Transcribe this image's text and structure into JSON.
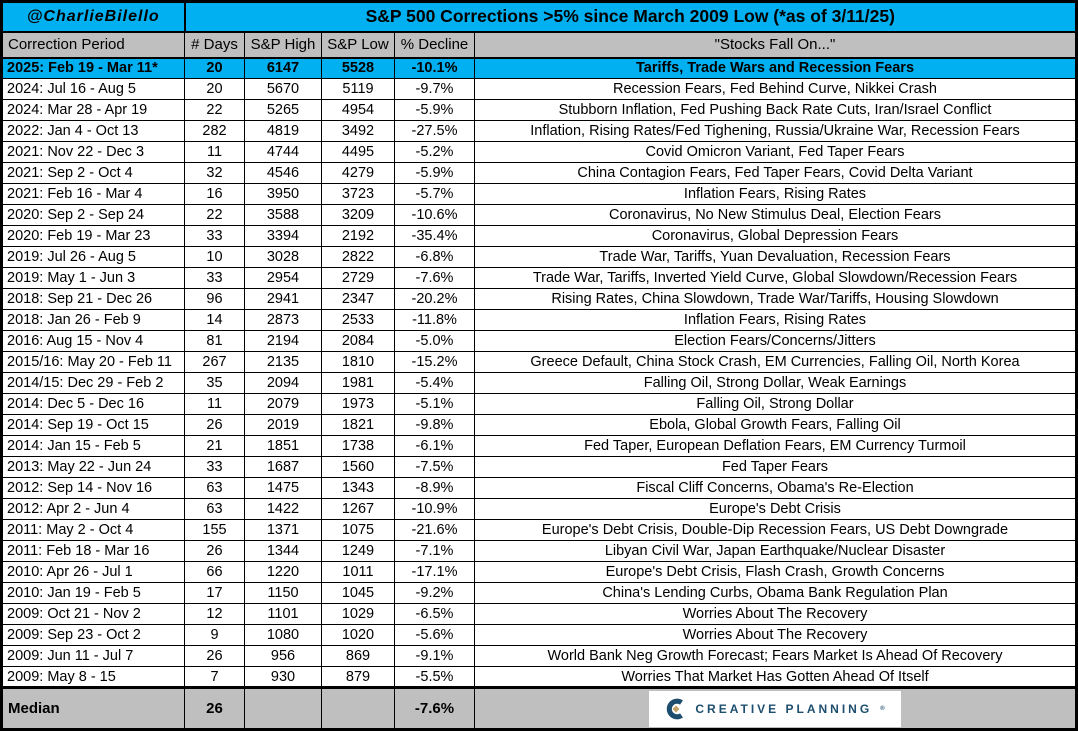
{
  "header": {
    "attribution": "@CharlieBilello",
    "title": "S&P 500 Corrections >5% since March 2009 Low (*as of 3/11/25)"
  },
  "chart_data": {
    "type": "table",
    "title": "S&P 500 Corrections >5% since March 2009 Low (*as of 3/11/25)",
    "columns": [
      "Correction Period",
      "# Days",
      "S&P High",
      "S&P Low",
      "% Decline",
      "\"Stocks Fall On...\""
    ],
    "highlighted_row": 0,
    "rows": [
      [
        "2025: Feb 19 - Mar 11*",
        "20",
        "6147",
        "5528",
        "-10.1%",
        "Tariffs, Trade Wars and Recession Fears"
      ],
      [
        "2024: Jul 16 - Aug 5",
        "20",
        "5670",
        "5119",
        "-9.7%",
        "Recession Fears, Fed Behind Curve, Nikkei Crash"
      ],
      [
        "2024: Mar 28 - Apr 19",
        "22",
        "5265",
        "4954",
        "-5.9%",
        "Stubborn Inflation, Fed Pushing Back Rate Cuts, Iran/Israel Conflict"
      ],
      [
        "2022: Jan 4 - Oct 13",
        "282",
        "4819",
        "3492",
        "-27.5%",
        "Inflation, Rising Rates/Fed Tighening, Russia/Ukraine War, Recession Fears"
      ],
      [
        "2021: Nov 22 - Dec 3",
        "11",
        "4744",
        "4495",
        "-5.2%",
        "Covid Omicron Variant, Fed Taper Fears"
      ],
      [
        "2021: Sep 2 - Oct 4",
        "32",
        "4546",
        "4279",
        "-5.9%",
        "China Contagion Fears, Fed Taper Fears, Covid Delta Variant"
      ],
      [
        "2021: Feb 16 - Mar 4",
        "16",
        "3950",
        "3723",
        "-5.7%",
        "Inflation Fears, Rising Rates"
      ],
      [
        "2020: Sep 2 - Sep 24",
        "22",
        "3588",
        "3209",
        "-10.6%",
        "Coronavirus, No New Stimulus Deal, Election Fears"
      ],
      [
        "2020: Feb 19 - Mar 23",
        "33",
        "3394",
        "2192",
        "-35.4%",
        "Coronavirus, Global Depression Fears"
      ],
      [
        "2019: Jul 26 - Aug 5",
        "10",
        "3028",
        "2822",
        "-6.8%",
        "Trade War, Tariffs, Yuan Devaluation, Recession Fears"
      ],
      [
        "2019: May 1 - Jun 3",
        "33",
        "2954",
        "2729",
        "-7.6%",
        "Trade War, Tariffs, Inverted Yield Curve, Global Slowdown/Recession Fears"
      ],
      [
        "2018: Sep 21 - Dec 26",
        "96",
        "2941",
        "2347",
        "-20.2%",
        "Rising Rates, China Slowdown, Trade War/Tariffs, Housing Slowdown"
      ],
      [
        "2018: Jan 26 - Feb 9",
        "14",
        "2873",
        "2533",
        "-11.8%",
        "Inflation Fears, Rising Rates"
      ],
      [
        "2016: Aug 15 - Nov 4",
        "81",
        "2194",
        "2084",
        "-5.0%",
        "Election Fears/Concerns/Jitters"
      ],
      [
        "2015/16: May 20 - Feb 11",
        "267",
        "2135",
        "1810",
        "-15.2%",
        "Greece Default, China Stock Crash, EM Currencies, Falling Oil, North Korea"
      ],
      [
        "2014/15: Dec 29 - Feb 2",
        "35",
        "2094",
        "1981",
        "-5.4%",
        "Falling Oil, Strong Dollar, Weak Earnings"
      ],
      [
        "2014: Dec 5 - Dec 16",
        "11",
        "2079",
        "1973",
        "-5.1%",
        "Falling Oil, Strong Dollar"
      ],
      [
        "2014: Sep 19 - Oct 15",
        "26",
        "2019",
        "1821",
        "-9.8%",
        "Ebola, Global Growth Fears, Falling Oil"
      ],
      [
        "2014: Jan 15 - Feb 5",
        "21",
        "1851",
        "1738",
        "-6.1%",
        "Fed Taper, European Deflation Fears, EM Currency Turmoil"
      ],
      [
        "2013: May 22 - Jun 24",
        "33",
        "1687",
        "1560",
        "-7.5%",
        "Fed Taper Fears"
      ],
      [
        "2012: Sep 14 - Nov 16",
        "63",
        "1475",
        "1343",
        "-8.9%",
        "Fiscal Cliff Concerns, Obama's Re-Election"
      ],
      [
        "2012: Apr 2 - Jun 4",
        "63",
        "1422",
        "1267",
        "-10.9%",
        "Europe's Debt Crisis"
      ],
      [
        "2011: May 2 - Oct 4",
        "155",
        "1371",
        "1075",
        "-21.6%",
        "Europe's Debt Crisis, Double-Dip Recession Fears, US Debt Downgrade"
      ],
      [
        "2011: Feb 18 - Mar 16",
        "26",
        "1344",
        "1249",
        "-7.1%",
        "Libyan Civil War, Japan Earthquake/Nuclear Disaster"
      ],
      [
        "2010: Apr 26 - Jul 1",
        "66",
        "1220",
        "1011",
        "-17.1%",
        "Europe's Debt Crisis, Flash Crash, Growth Concerns"
      ],
      [
        "2010: Jan 19 - Feb 5",
        "17",
        "1150",
        "1045",
        "-9.2%",
        "China's Lending Curbs, Obama Bank Regulation Plan"
      ],
      [
        "2009: Oct 21 - Nov 2",
        "12",
        "1101",
        "1029",
        "-6.5%",
        "Worries About The Recovery"
      ],
      [
        "2009: Sep 23 - Oct 2",
        "9",
        "1080",
        "1020",
        "-5.6%",
        "Worries About The Recovery"
      ],
      [
        "2009: Jun 11 - Jul 7",
        "26",
        "956",
        "869",
        "-9.1%",
        "World Bank Neg Growth Forecast; Fears Market Is Ahead Of Recovery"
      ],
      [
        "2009: May 8 - 15",
        "7",
        "930",
        "879",
        "-5.5%",
        "Worries That Market Has Gotten Ahead Of Itself"
      ]
    ],
    "median": [
      "Median",
      "26",
      "",
      "",
      "-7.6%",
      ""
    ]
  },
  "footer": {
    "logo_text": "CREATIVE PLANNING",
    "logo_mark": "®"
  },
  "colors": {
    "accent_cyan": "#00B0F0",
    "header_gray": "#BFBFBF",
    "logo_navy": "#1D4E6E",
    "logo_gold": "#C3A36A"
  }
}
